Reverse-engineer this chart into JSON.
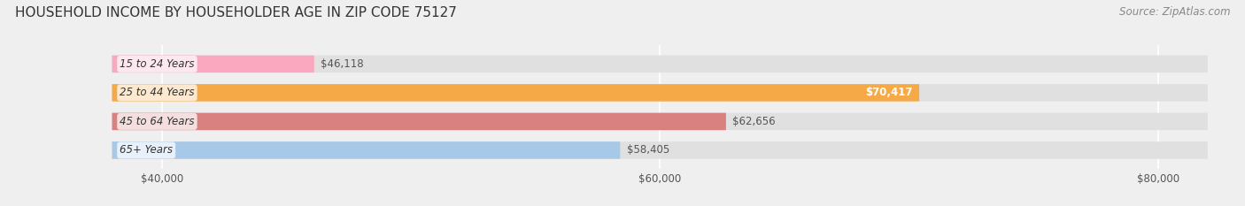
{
  "title": "HOUSEHOLD INCOME BY HOUSEHOLDER AGE IN ZIP CODE 75127",
  "source": "Source: ZipAtlas.com",
  "categories": [
    "15 to 24 Years",
    "25 to 44 Years",
    "45 to 64 Years",
    "65+ Years"
  ],
  "values": [
    46118,
    70417,
    62656,
    58405
  ],
  "bar_colors": [
    "#f9a8c0",
    "#f5a947",
    "#d98080",
    "#a8c8e8"
  ],
  "xlim": [
    38000,
    82000
  ],
  "xticks": [
    40000,
    60000,
    80000
  ],
  "xtick_labels": [
    "$40,000",
    "$60,000",
    "$80,000"
  ],
  "label_inside": [
    false,
    true,
    false,
    false
  ],
  "background_color": "#efefef",
  "bar_bg_color": "#e0e0e0",
  "title_fontsize": 11,
  "source_fontsize": 8.5,
  "bar_height": 0.6,
  "bar_rounding": 0.28
}
